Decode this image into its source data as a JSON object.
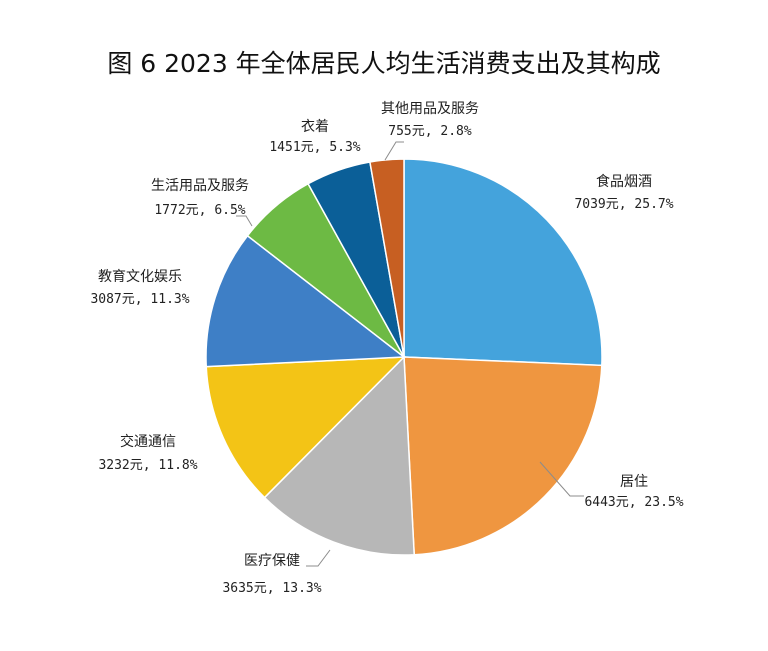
{
  "chart_data": {
    "type": "pie",
    "title": "图 6  2023 年全体居民人均生活消费支出及其构成",
    "start_angle_deg": 0,
    "direction": "clockwise",
    "slices": [
      {
        "name": "食品烟酒",
        "value": 7039,
        "percent": 25.7,
        "value_label": "7039元, 25.7%",
        "color": "#44A3DC"
      },
      {
        "name": "居住",
        "value": 6443,
        "percent": 23.5,
        "value_label": "6443元, 23.5%",
        "color": "#EF9640"
      },
      {
        "name": "医疗保健",
        "value": 3635,
        "percent": 13.3,
        "value_label": "3635元, 13.3%",
        "color": "#B7B7B7"
      },
      {
        "name": "交通通信",
        "value": 3232,
        "percent": 11.8,
        "value_label": "3232元, 11.8%",
        "color": "#F3C416"
      },
      {
        "name": "教育文化娱乐",
        "value": 3087,
        "percent": 11.3,
        "value_label": "3087元, 11.3%",
        "color": "#3E7FC6"
      },
      {
        "name": "生活用品及服务",
        "value": 1772,
        "percent": 6.5,
        "value_label": "1772元, 6.5%",
        "color": "#6DBA44"
      },
      {
        "name": "衣着",
        "value": 1451,
        "percent": 5.3,
        "value_label": "1451元, 5.3%",
        "color": "#0B5F98"
      },
      {
        "name": "其他用品及服务",
        "value": 755,
        "percent": 2.8,
        "value_label": "755元, 2.8%",
        "color": "#C75F22"
      }
    ]
  }
}
